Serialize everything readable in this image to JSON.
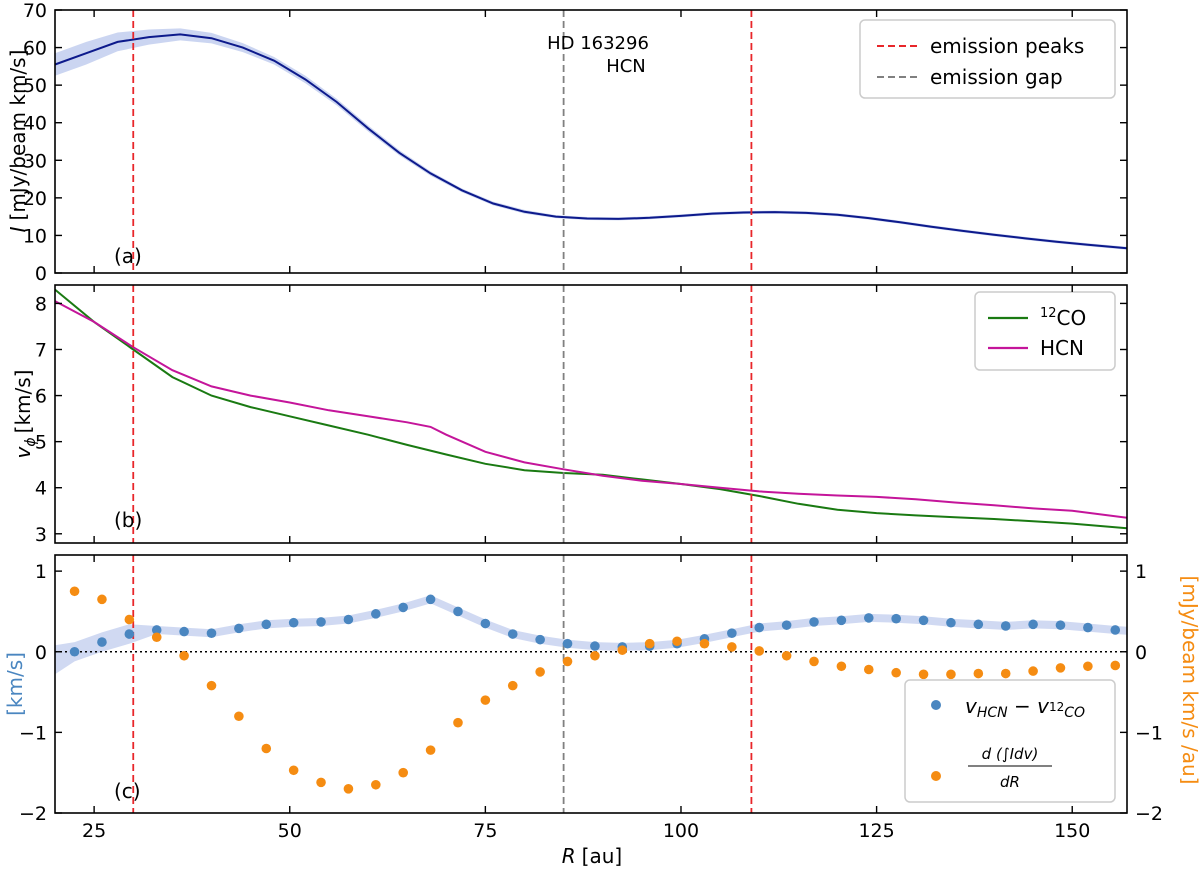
{
  "chart_data": [
    {
      "panel": "a",
      "type": "line",
      "panel_label": "(a)",
      "annotation": [
        "HD 163296",
        "HCN"
      ],
      "ylabel_symbol": "I",
      "ylabel_units": "[mJy/beam km/s]",
      "xlim": [
        20,
        157
      ],
      "ylim": [
        0,
        70
      ],
      "xticks": [
        25,
        50,
        75,
        100,
        125,
        150
      ],
      "yticks": [
        0,
        10,
        20,
        30,
        40,
        50,
        60,
        70
      ],
      "ytick_labels": [
        "0",
        "10",
        "20",
        "30",
        "40",
        "50",
        "60",
        "70"
      ],
      "series": [
        {
          "label": "HCN",
          "color": "#0d1a8c",
          "x": [
            20,
            24,
            28,
            32,
            36,
            40,
            44,
            48,
            52,
            56,
            60,
            64,
            68,
            72,
            76,
            80,
            84,
            88,
            92,
            96,
            100,
            104,
            108,
            112,
            116,
            120,
            124,
            128,
            132,
            136,
            140,
            144,
            148,
            152,
            157
          ],
          "y": [
            55.5,
            58.5,
            61.5,
            62.8,
            63.5,
            62.5,
            60,
            56.5,
            51.5,
            45.5,
            38.5,
            32,
            26.5,
            22,
            18.5,
            16.3,
            15,
            14.5,
            14.4,
            14.7,
            15.2,
            15.8,
            16.1,
            16.2,
            16,
            15.5,
            14.6,
            13.5,
            12.3,
            11.2,
            10.2,
            9.2,
            8.3,
            7.5,
            6.6
          ],
          "band": [
            3,
            3,
            2.5,
            2,
            1.6,
            1.4,
            1.2,
            1,
            1,
            0.9,
            0.8,
            0.7,
            0.6,
            0.5,
            0.5,
            0.5,
            0.4,
            0.4,
            0.4,
            0.4,
            0.4,
            0.4,
            0.4,
            0.4,
            0.4,
            0.4,
            0.4,
            0.4,
            0.4,
            0.4,
            0.4,
            0.4,
            0.4,
            0.4,
            0.4
          ]
        }
      ],
      "vlines": [
        {
          "x": 30,
          "color": "#e8262a",
          "kind": "peak"
        },
        {
          "x": 85,
          "color": "#808080",
          "kind": "gap"
        },
        {
          "x": 109,
          "color": "#e8262a",
          "kind": "peak"
        }
      ],
      "legend": [
        {
          "label": "emission peaks",
          "color": "#e8262a",
          "style": "dashed"
        },
        {
          "label": "emission gap",
          "color": "#808080",
          "style": "dashed"
        }
      ],
      "legend_placement": "top-right"
    },
    {
      "panel": "b",
      "type": "line",
      "panel_label": "(b)",
      "ylabel": "v_ϕ [km/s]",
      "ylabel_symbol": "v",
      "ylabel_sub": "ϕ",
      "ylabel_units": "[km/s]",
      "xlim": [
        20,
        157
      ],
      "ylim": [
        2.8,
        8.4
      ],
      "yticks": [
        3,
        4,
        5,
        6,
        7,
        8
      ],
      "ytick_labels": [
        "3",
        "4",
        "5",
        "6",
        "7",
        "8"
      ],
      "series": [
        {
          "label": "12CO",
          "label_sup": "12",
          "label_text": "CO",
          "color": "#1a7a12",
          "x": [
            20,
            25,
            30,
            35,
            40,
            45,
            50,
            55,
            60,
            65,
            70,
            75,
            80,
            85,
            90,
            95,
            100,
            105,
            110,
            115,
            120,
            125,
            130,
            135,
            140,
            145,
            150,
            157
          ],
          "y": [
            8.3,
            7.6,
            7.0,
            6.4,
            6.0,
            5.75,
            5.55,
            5.35,
            5.15,
            4.93,
            4.72,
            4.52,
            4.38,
            4.32,
            4.28,
            4.18,
            4.08,
            3.97,
            3.82,
            3.65,
            3.52,
            3.45,
            3.4,
            3.36,
            3.32,
            3.27,
            3.22,
            3.12
          ]
        },
        {
          "label": "HCN",
          "color": "#c4159a",
          "x": [
            20,
            25,
            30,
            35,
            40,
            45,
            50,
            55,
            60,
            65,
            68,
            70,
            75,
            80,
            85,
            90,
            95,
            100,
            105,
            110,
            115,
            120,
            125,
            130,
            135,
            140,
            145,
            150,
            157
          ],
          "y": [
            8.05,
            7.6,
            7.05,
            6.55,
            6.2,
            6.0,
            5.85,
            5.68,
            5.55,
            5.42,
            5.32,
            5.15,
            4.78,
            4.55,
            4.4,
            4.26,
            4.15,
            4.08,
            4.0,
            3.92,
            3.87,
            3.83,
            3.8,
            3.75,
            3.68,
            3.62,
            3.55,
            3.5,
            3.35
          ]
        }
      ],
      "legend_placement": "top-right"
    },
    {
      "panel": "c",
      "type": "scatter",
      "panel_label": "(c)",
      "xlabel_symbol": "R",
      "xlabel_units": "[au]",
      "ylabel_left": "[km/s]",
      "ylabel_right": "[mJy/beam km/s /au]",
      "xlim": [
        20,
        157
      ],
      "ylim": [
        -2,
        1.2
      ],
      "ylim_right": [
        -2,
        1.2
      ],
      "yticks": [
        -2,
        -1,
        0,
        1
      ],
      "ytick_labels": [
        "−2",
        "−1",
        "0",
        "1"
      ],
      "xticks": [
        25,
        50,
        75,
        100,
        125,
        150
      ],
      "xtick_labels": [
        "25",
        "50",
        "75",
        "100",
        "125",
        "150"
      ],
      "series": [
        {
          "label": "v_HCN − v_12CO",
          "color": "#4a86c0",
          "x": [
            22.5,
            26,
            29.5,
            33,
            36.5,
            40,
            43.5,
            47,
            50.5,
            54,
            57.5,
            61,
            64.5,
            68,
            71.5,
            75,
            78.5,
            82,
            85.5,
            89,
            92.5,
            96,
            99.5,
            103,
            106.5,
            110,
            113.5,
            117,
            120.5,
            124,
            127.5,
            131,
            134.5,
            138,
            141.5,
            145,
            148.5,
            152,
            155.5
          ],
          "y": [
            0.0,
            0.12,
            0.22,
            0.27,
            0.25,
            0.23,
            0.29,
            0.34,
            0.36,
            0.37,
            0.4,
            0.47,
            0.55,
            0.65,
            0.5,
            0.35,
            0.22,
            0.15,
            0.1,
            0.07,
            0.06,
            0.07,
            0.1,
            0.16,
            0.23,
            0.3,
            0.33,
            0.37,
            0.39,
            0.42,
            0.41,
            0.39,
            0.36,
            0.34,
            0.32,
            0.34,
            0.33,
            0.3,
            0.27
          ]
        },
        {
          "label": "d(∫Idv)/dR",
          "color": "#f58c12",
          "axis": "right",
          "x": [
            22.5,
            26,
            29.5,
            33,
            36.5,
            40,
            43.5,
            47,
            50.5,
            54,
            57.5,
            61,
            64.5,
            68,
            71.5,
            75,
            78.5,
            82,
            85.5,
            89,
            92.5,
            96,
            99.5,
            103,
            106.5,
            110,
            113.5,
            117,
            120.5,
            124,
            127.5,
            131,
            134.5,
            138,
            141.5,
            145,
            148.5,
            152,
            155.5
          ],
          "y": [
            0.75,
            0.65,
            0.4,
            0.18,
            -0.05,
            -0.42,
            -0.8,
            -1.2,
            -1.47,
            -1.62,
            -1.7,
            -1.65,
            -1.5,
            -1.22,
            -0.88,
            -0.6,
            -0.42,
            -0.25,
            -0.12,
            -0.05,
            0.02,
            0.1,
            0.13,
            0.1,
            0.06,
            0.01,
            -0.05,
            -0.12,
            -0.18,
            -0.22,
            -0.26,
            -0.28,
            -0.28,
            -0.27,
            -0.27,
            -0.24,
            -0.2,
            -0.18,
            -0.17
          ]
        }
      ],
      "legend": [
        {
          "label": "v_HCN − v_12CO",
          "color": "#4a86c0"
        },
        {
          "label": "d(∫Idv)/dR",
          "color": "#f58c12"
        }
      ],
      "legend_placement": "bottom-right",
      "hline": {
        "y": 0,
        "style": "dotted",
        "color": "#000000"
      }
    }
  ]
}
